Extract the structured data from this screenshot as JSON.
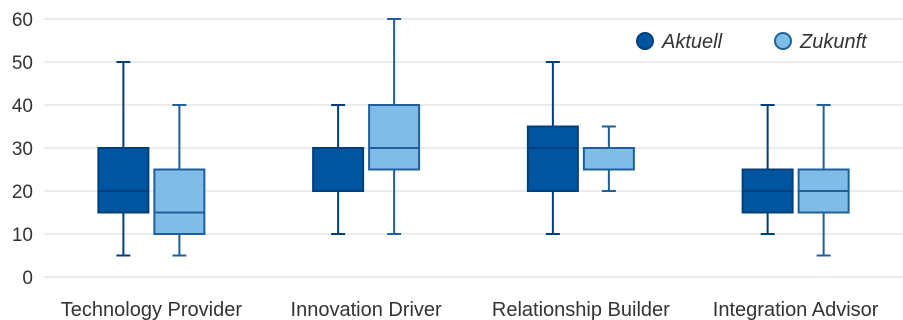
{
  "chart_data": {
    "type": "boxplot",
    "title": "",
    "xlabel": "",
    "ylabel": "",
    "ylim": [
      0,
      60
    ],
    "yticks": [
      0,
      10,
      20,
      30,
      40,
      50,
      60
    ],
    "grid": "horizontal",
    "legend_position": "top-right",
    "categories": [
      "Technology Provider",
      "Innovation Driver",
      "Relationship Builder",
      "Integration Advisor"
    ],
    "series": [
      {
        "name": "Aktuell",
        "color": "#0055a0",
        "stats": [
          {
            "min": 5,
            "q1": 15,
            "median": 20,
            "q3": 30,
            "max": 50
          },
          {
            "min": 10,
            "q1": 20,
            "median": 20,
            "q3": 30,
            "max": 40
          },
          {
            "min": 10,
            "q1": 20,
            "median": 30,
            "q3": 35,
            "max": 50
          },
          {
            "min": 10,
            "q1": 15,
            "median": 20,
            "q3": 25,
            "max": 40
          }
        ]
      },
      {
        "name": "Zukunft",
        "color": "#7fbde8",
        "stats": [
          {
            "min": 5,
            "q1": 10,
            "median": 15,
            "q3": 25,
            "max": 40
          },
          {
            "min": 10,
            "q1": 25,
            "median": 30,
            "q3": 40,
            "max": 60
          },
          {
            "min": 20,
            "q1": 25,
            "median": 25,
            "q3": 30,
            "max": 35
          },
          {
            "min": 5,
            "q1": 15,
            "median": 20,
            "q3": 25,
            "max": 40
          }
        ]
      }
    ]
  }
}
